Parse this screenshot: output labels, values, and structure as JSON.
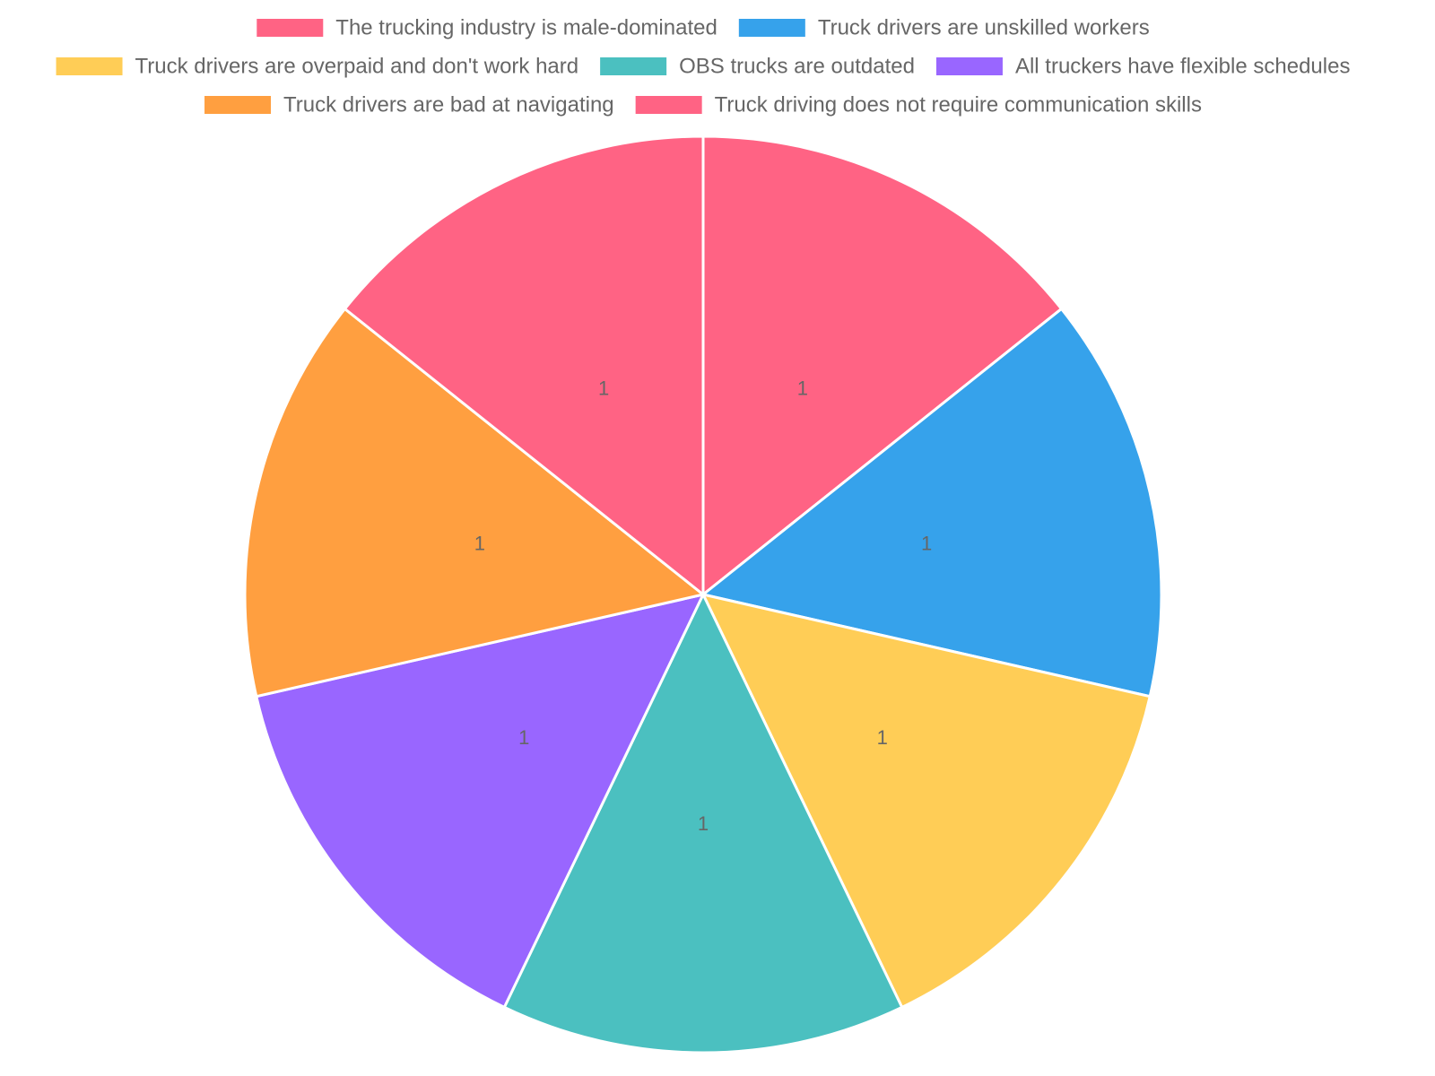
{
  "chart_data": {
    "type": "pie",
    "title": "",
    "legend_position": "top",
    "categories": [
      "The trucking industry is male-dominated",
      "Truck drivers are unskilled workers",
      "Truck drivers are overpaid and don't work hard",
      "OBS trucks are outdated",
      "All truckers have flexible schedules",
      "Truck drivers are bad at navigating",
      "Truck driving does not require communication skills"
    ],
    "values": [
      1,
      1,
      1,
      1,
      1,
      1,
      1
    ],
    "data_labels": [
      "1",
      "1",
      "1",
      "1",
      "1",
      "1",
      "1"
    ],
    "colors": [
      "#ff6384",
      "#36a2eb",
      "#ffcd56",
      "#4bc0c0",
      "#9966ff",
      "#ff9f40",
      "#ff6384"
    ]
  }
}
